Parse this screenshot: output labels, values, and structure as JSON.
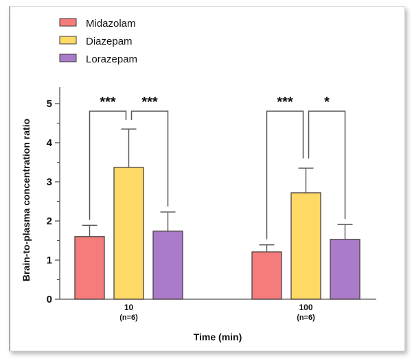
{
  "chart_data": {
    "type": "bar",
    "title": "",
    "xlabel": "Time (min)",
    "ylabel": "Brain-to-plasma concentration ratio",
    "ylim": [
      0,
      5
    ],
    "yticks": [
      "0",
      "1",
      "2",
      "3",
      "4",
      "5"
    ],
    "grid": false,
    "legend_position": "top-left",
    "categories": [
      {
        "label": "10",
        "sublabel": "(n=6)"
      },
      {
        "label": "100",
        "sublabel": "(n=6)"
      }
    ],
    "series": [
      {
        "name": "Midazolam",
        "color": "#F47C7C",
        "values": [
          1.6,
          1.21
        ],
        "error_upper": [
          1.89,
          1.39
        ]
      },
      {
        "name": "Diazepam",
        "color": "#FED966",
        "values": [
          3.37,
          2.72
        ],
        "error_upper": [
          4.35,
          3.35
        ]
      },
      {
        "name": "Lorazepam",
        "color": "#A97BC9",
        "values": [
          1.74,
          1.53
        ],
        "error_upper": [
          2.23,
          1.91
        ]
      }
    ],
    "significance": [
      {
        "category": 0,
        "from": "Midazolam",
        "to": "Diazepam",
        "label": "***"
      },
      {
        "category": 0,
        "from": "Diazepam",
        "to": "Lorazepam",
        "label": "***"
      },
      {
        "category": 1,
        "from": "Midazolam",
        "to": "Diazepam",
        "label": "***"
      },
      {
        "category": 1,
        "from": "Diazepam",
        "to": "Lorazepam",
        "label": "*"
      }
    ]
  }
}
